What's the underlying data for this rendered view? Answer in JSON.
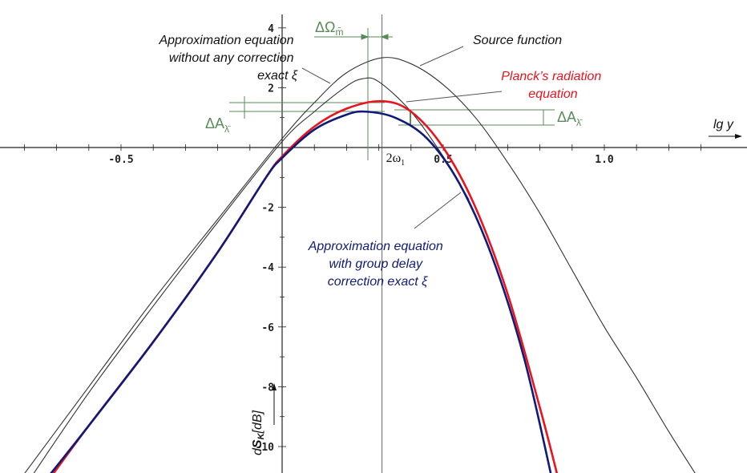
{
  "chart_data": {
    "type": "line",
    "title": "",
    "xlabel": "lg y",
    "ylabel_prefix": "d",
    "ylabel_bold": "S",
    "ylabel_sub": "K",
    "ylabel_suffix": "[dB]",
    "xlim": [
      -0.86,
      1.35
    ],
    "ylim": [
      -11.2,
      4.5
    ],
    "x_ticks": [
      -0.5,
      0.5,
      1.0
    ],
    "x_tick_labels": [
      "-0.5",
      "0.5",
      "1.0"
    ],
    "y_ticks": [
      4,
      2,
      -2,
      -4,
      -6,
      -8,
      -10
    ],
    "y_tick_labels": [
      "4",
      "2",
      "-2",
      "-4",
      "-6",
      "-8",
      "-10"
    ],
    "x_marker": {
      "x": 0.31,
      "label_main": "2ω",
      "label_sub": "1"
    },
    "series": [
      {
        "color": "#333333",
        "x": [
          -0.82,
          -0.6,
          -0.4,
          -0.2,
          0.0,
          0.1,
          0.2,
          0.31,
          0.4,
          0.5,
          0.6,
          0.7,
          0.8,
          0.9,
          1.0,
          1.1,
          1.2,
          1.3
        ],
        "y": [
          -11.2,
          -8.0,
          -5.1,
          -2.4,
          0.3,
          1.5,
          2.5,
          3.0,
          2.8,
          2.1,
          1.0,
          -0.5,
          -2.2,
          -4.1,
          -6.0,
          -7.7,
          -9.5,
          -11.2
        ]
      },
      {
        "color": "#333333",
        "x": [
          -0.79,
          -0.6,
          -0.4,
          -0.2,
          0.0,
          0.1,
          0.2,
          0.25,
          0.3,
          0.4,
          0.5,
          0.58
        ],
        "y": [
          -11.2,
          -8.2,
          -5.3,
          -2.5,
          0.2,
          1.2,
          2.05,
          2.3,
          2.2,
          1.2,
          -0.3,
          -1.75
        ]
      },
      {
        "color": "#e8141e",
        "x": [
          -0.73,
          -0.6,
          -0.4,
          -0.2,
          -0.05,
          0.0,
          0.1,
          0.2,
          0.31,
          0.4,
          0.5,
          0.6,
          0.7,
          0.8,
          0.86
        ],
        "y": [
          -11.2,
          -9.3,
          -6.5,
          -3.5,
          -1.0,
          -0.3,
          0.7,
          1.3,
          1.55,
          1.2,
          0.0,
          -2.0,
          -4.9,
          -8.7,
          -11.2
        ]
      },
      {
        "color": "#101a78",
        "x": [
          -0.74,
          -0.6,
          -0.4,
          -0.2,
          -0.05,
          0.0,
          0.1,
          0.2,
          0.26,
          0.35,
          0.45,
          0.55,
          0.65,
          0.75,
          0.84
        ],
        "y": [
          -11.2,
          -9.3,
          -6.5,
          -3.5,
          -1.0,
          -0.35,
          0.6,
          1.1,
          1.2,
          1.0,
          0.3,
          -1.2,
          -3.6,
          -7.0,
          -11.2
        ]
      }
    ],
    "annotations": [
      {
        "lines": [
          "Approximation equation",
          "without any correction",
          "exact ξ"
        ],
        "color": "#111111"
      },
      {
        "lines": [
          "Source function"
        ],
        "color": "#111111"
      },
      {
        "lines": [
          "Planck’s radiation",
          "equation"
        ],
        "color": "#e8141e"
      },
      {
        "lines": [
          "Approximation equation",
          "with group delay",
          "correction exact ξ"
        ],
        "color": "#101a78"
      }
    ],
    "dimension_marks": [
      {
        "label_main": "ΔΩ",
        "label_sub": "m̄"
      },
      {
        "label_main": "ΔA",
        "label_sub": "λ̄"
      },
      {
        "label_main": "ΔA",
        "label_sub": "λ̄"
      }
    ]
  }
}
